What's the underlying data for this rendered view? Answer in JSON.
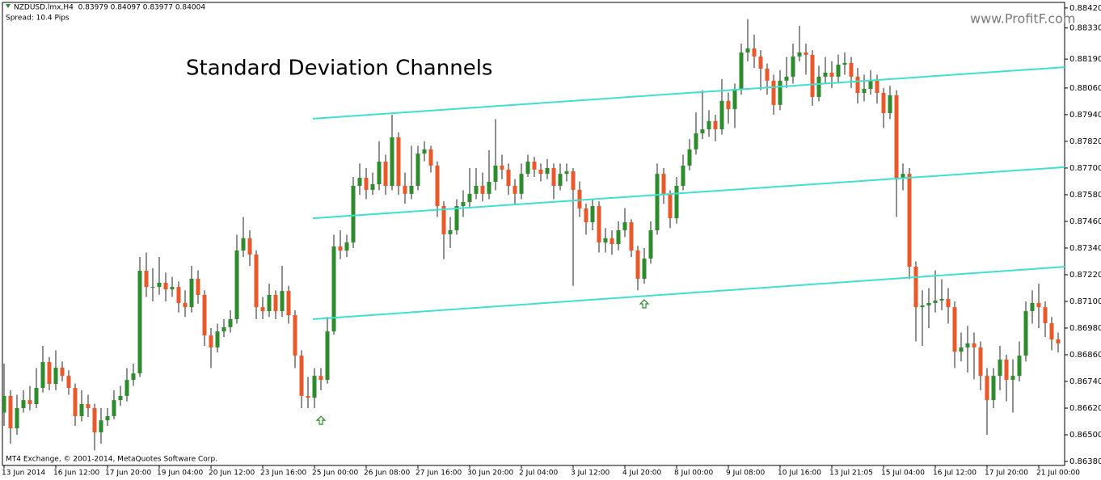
{
  "chart_data": {
    "type": "candlestick",
    "symbol_info": "NZDUSD.lmx,H4  0.83979 0.84097 0.83977 0.84004",
    "spread": "Spread: 10.4 Pips",
    "title": "Standard Deviation Channels",
    "watermark": "www.ProfitF.com",
    "credit": "MT4 Exchange, © 2001-2014, MetaQuotes Software Corp.",
    "up_color": "#2e8b2e",
    "down_color": "#e8582a",
    "wick_color": "#222222",
    "categories": [
      "13 Jun 2014",
      null,
      null,
      null,
      null,
      null,
      null,
      null,
      "16 Jun 12:00",
      null,
      null,
      null,
      null,
      null,
      null,
      null,
      "17 Jun 20:00",
      null,
      null,
      null,
      null,
      null,
      null,
      null,
      "19 Jun 04:00",
      null,
      null,
      null,
      null,
      null,
      null,
      null,
      "20 Jun 12:00",
      null,
      null,
      null,
      null,
      null,
      null,
      null,
      "23 Jun 16:00",
      null,
      null,
      null,
      null,
      null,
      null,
      null,
      "25 Jun 00:00",
      null,
      null,
      null,
      null,
      null,
      null,
      null,
      "26 Jun 08:00",
      null,
      null,
      null,
      null,
      null,
      null,
      null,
      "27 Jun 16:00",
      null,
      null,
      null,
      null,
      null,
      null,
      null,
      "30 Jun 20:00",
      null,
      null,
      null,
      null,
      null,
      null,
      null,
      "2 Jul 04:00",
      null,
      null,
      null,
      null,
      null,
      null,
      null,
      "3 Jul 12:00",
      null,
      null,
      null,
      null,
      null,
      null,
      null,
      "4 Jul 20:00",
      null,
      null,
      null,
      null,
      null,
      null,
      null,
      "8 Jul 00:00",
      null,
      null,
      null,
      null,
      null,
      null,
      null,
      "9 Jul 08:00",
      null,
      null,
      null,
      null,
      null,
      null,
      null,
      "10 Jul 16:00",
      null,
      null,
      null,
      null,
      null,
      null,
      null,
      "13 Jul 21:05",
      null,
      null,
      null,
      null,
      null,
      null,
      null,
      "15 Jul 04:00",
      null,
      null,
      null,
      null,
      null,
      null,
      null,
      "16 Jul 12:00",
      null,
      null,
      null,
      null,
      null,
      null,
      null,
      "17 Jul 20:00",
      null,
      null,
      null,
      null,
      null,
      null,
      null,
      "21 Jul 00:00",
      null,
      null,
      null
    ],
    "open": [
      0.866,
      0.86675,
      0.86529,
      0.8662,
      0.86656,
      0.86638,
      0.86711,
      0.86827,
      0.86729,
      0.86802,
      0.86765,
      0.86711,
      0.86584,
      0.86638,
      0.8662,
      0.86511,
      0.86565,
      0.86584,
      0.86656,
      0.86675,
      0.86747,
      0.86776,
      0.87238,
      0.87165,
      0.87165,
      0.87184,
      0.87154,
      0.87165,
      0.87093,
      0.87074,
      0.87202,
      0.87129,
      0.86947,
      0.86893,
      0.86965,
      0.86984,
      0.8702,
      0.87329,
      0.87384,
      0.87311,
      0.87074,
      0.87056,
      0.87129,
      0.87056,
      0.87147,
      0.87038,
      0.86856,
      0.86675,
      0.86667,
      0.86765,
      0.86747,
      0.86965,
      0.87347,
      0.87329,
      0.87365,
      0.8762,
      0.87656,
      0.87602,
      0.87627,
      0.87729,
      0.8762,
      0.87838,
      0.8762,
      0.87584,
      0.8762,
      0.87765,
      0.87784,
      0.87711,
      0.87529,
      0.87402,
      0.8742,
      0.87529,
      0.87547,
      0.87584,
      0.8762,
      0.87584,
      0.87638,
      0.87711,
      0.87693,
      0.8762,
      0.87584,
      0.87674,
      0.87729,
      0.87693,
      0.87674,
      0.877,
      0.8762,
      0.87674,
      0.87685,
      0.87602,
      0.87518,
      0.87456,
      0.87529,
      0.87365,
      0.87384,
      0.87358,
      0.8742,
      0.87456,
      0.87329,
      0.87202,
      0.87293,
      0.8742,
      0.87674,
      0.87584,
      0.87474,
      0.8762,
      0.87711,
      0.87784,
      0.87856,
      0.87874,
      0.87911,
      0.87874,
      0.88002,
      0.87965,
      0.88056,
      0.8822,
      0.88238,
      0.88202,
      0.88147,
      0.88093,
      0.87984,
      0.88093,
      0.88111,
      0.88202,
      0.8822,
      0.88209,
      0.8802,
      0.88111,
      0.88129,
      0.88111,
      0.88165,
      0.88173,
      0.88111,
      0.88038,
      0.88056,
      0.88093,
      0.88038,
      0.87947,
      0.88027,
      0.87656,
      0.87674,
      0.87256,
      0.87074,
      0.87082,
      0.87093,
      0.87104,
      0.87111,
      0.87074,
      0.86874,
      0.86893,
      0.86911,
      0.86893,
      0.86765,
      0.86656,
      0.86765,
      0.86838,
      0.86747,
      0.86765,
      0.86856,
      0.87056,
      0.87093,
      0.87074,
      0.87002,
      0.86929
    ],
    "high": [
      0.8682,
      0.867,
      0.8668,
      0.867,
      0.8672,
      0.868,
      0.869,
      0.8685,
      0.8688,
      0.8683,
      0.8679,
      0.8673,
      0.867,
      0.8668,
      0.8664,
      0.8662,
      0.8662,
      0.867,
      0.8672,
      0.868,
      0.8682,
      0.873,
      0.8732,
      0.8725,
      0.873,
      0.8723,
      0.8721,
      0.8719,
      0.8715,
      0.8726,
      0.8724,
      0.8715,
      0.8698,
      0.87,
      0.8702,
      0.8706,
      0.874,
      0.8748,
      0.8742,
      0.8733,
      0.8712,
      0.8718,
      0.8715,
      0.8726,
      0.8717,
      0.8706,
      0.8688,
      0.8676,
      0.868,
      0.868,
      0.8703,
      0.874,
      0.8742,
      0.874,
      0.8766,
      0.8772,
      0.877,
      0.8768,
      0.8782,
      0.8776,
      0.8794,
      0.8786,
      0.8768,
      0.878,
      0.878,
      0.8782,
      0.878,
      0.8773,
      0.8755,
      0.8748,
      0.8756,
      0.876,
      0.877,
      0.877,
      0.8768,
      0.8778,
      0.8792,
      0.8776,
      0.8772,
      0.8765,
      0.8772,
      0.8776,
      0.8775,
      0.8772,
      0.8774,
      0.8772,
      0.8772,
      0.8772,
      0.877,
      0.8764,
      0.8754,
      0.8756,
      0.8755,
      0.8743,
      0.8742,
      0.8746,
      0.8752,
      0.8747,
      0.8735,
      0.8734,
      0.8746,
      0.8772,
      0.877,
      0.876,
      0.8766,
      0.8776,
      0.8783,
      0.8795,
      0.8805,
      0.8796,
      0.8794,
      0.881,
      0.8804,
      0.8808,
      0.8826,
      0.8837,
      0.883,
      0.8823,
      0.8817,
      0.8812,
      0.8814,
      0.882,
      0.8826,
      0.8834,
      0.8826,
      0.8823,
      0.8816,
      0.882,
      0.8818,
      0.8821,
      0.8822,
      0.882,
      0.8815,
      0.8812,
      0.8814,
      0.8812,
      0.8806,
      0.8807,
      0.8805,
      0.8772,
      0.877,
      0.8728,
      0.8715,
      0.8716,
      0.8724,
      0.872,
      0.8716,
      0.871,
      0.8696,
      0.8699,
      0.8696,
      0.8692,
      0.868,
      0.868,
      0.869,
      0.8686,
      0.8684,
      0.8692,
      0.871,
      0.8715,
      0.8718,
      0.871,
      0.8703,
      0.8696
    ],
    "low": [
      0.8654,
      0.8646,
      0.865,
      0.866,
      0.8661,
      0.8662,
      0.8669,
      0.867,
      0.867,
      0.8674,
      0.8668,
      0.8654,
      0.8656,
      0.8658,
      0.8643,
      0.8646,
      0.8654,
      0.8657,
      0.8663,
      0.8665,
      0.8672,
      0.8676,
      0.8712,
      0.871,
      0.8713,
      0.871,
      0.8712,
      0.8705,
      0.8703,
      0.8705,
      0.8709,
      0.869,
      0.868,
      0.8687,
      0.8694,
      0.8696,
      0.87,
      0.873,
      0.8726,
      0.8702,
      0.8702,
      0.8703,
      0.8702,
      0.8703,
      0.87,
      0.868,
      0.8662,
      0.8662,
      0.8662,
      0.867,
      0.8673,
      0.8695,
      0.8729,
      0.873,
      0.8734,
      0.8758,
      0.8756,
      0.8758,
      0.876,
      0.8758,
      0.876,
      0.8758,
      0.8754,
      0.8756,
      0.876,
      0.8773,
      0.8768,
      0.8748,
      0.8729,
      0.8734,
      0.874,
      0.8748,
      0.8752,
      0.8756,
      0.8755,
      0.8756,
      0.876,
      0.8765,
      0.8758,
      0.8754,
      0.8756,
      0.8766,
      0.8766,
      0.8764,
      0.8765,
      0.8756,
      0.876,
      0.8764,
      0.8717,
      0.8748,
      0.874,
      0.8742,
      0.8732,
      0.8732,
      0.8731,
      0.8733,
      0.8739,
      0.873,
      0.8715,
      0.8718,
      0.8727,
      0.874,
      0.8754,
      0.8743,
      0.8745,
      0.876,
      0.8769,
      0.8776,
      0.8783,
      0.8784,
      0.8782,
      0.8785,
      0.879,
      0.8788,
      0.8803,
      0.8818,
      0.8815,
      0.8805,
      0.8803,
      0.8794,
      0.8796,
      0.8806,
      0.8808,
      0.8818,
      0.8812,
      0.8798,
      0.88,
      0.8808,
      0.8806,
      0.8808,
      0.8812,
      0.8806,
      0.8799,
      0.88,
      0.8803,
      0.8799,
      0.8788,
      0.8792,
      0.8748,
      0.876,
      0.872,
      0.8692,
      0.869,
      0.8698,
      0.8705,
      0.8706,
      0.87,
      0.868,
      0.8683,
      0.8678,
      0.8675,
      0.867,
      0.865,
      0.8662,
      0.867,
      0.8665,
      0.866,
      0.8674,
      0.8683,
      0.87,
      0.8698,
      0.8694,
      0.8688,
      0.8687
    ],
    "close": [
      0.86675,
      0.86529,
      0.8662,
      0.86656,
      0.86638,
      0.86711,
      0.86827,
      0.86729,
      0.86802,
      0.86765,
      0.86711,
      0.86584,
      0.86638,
      0.8662,
      0.86511,
      0.86565,
      0.86584,
      0.86656,
      0.86675,
      0.86747,
      0.86776,
      0.87238,
      0.87165,
      0.87165,
      0.87184,
      0.87154,
      0.87165,
      0.87093,
      0.87074,
      0.87202,
      0.87129,
      0.86947,
      0.86893,
      0.86965,
      0.86984,
      0.8702,
      0.87329,
      0.87384,
      0.87311,
      0.87074,
      0.87056,
      0.87129,
      0.87056,
      0.87147,
      0.87038,
      0.86856,
      0.86675,
      0.86667,
      0.86765,
      0.86747,
      0.86965,
      0.87347,
      0.87329,
      0.87365,
      0.8762,
      0.87656,
      0.87602,
      0.87627,
      0.87729,
      0.8762,
      0.87838,
      0.8762,
      0.87584,
      0.8762,
      0.87765,
      0.87784,
      0.87711,
      0.87529,
      0.87402,
      0.8742,
      0.87529,
      0.87547,
      0.87584,
      0.8762,
      0.87584,
      0.87638,
      0.87711,
      0.87693,
      0.8762,
      0.87584,
      0.87674,
      0.87729,
      0.87693,
      0.87674,
      0.877,
      0.8762,
      0.87674,
      0.87685,
      0.87602,
      0.87518,
      0.87456,
      0.87529,
      0.87365,
      0.87384,
      0.87358,
      0.8742,
      0.87456,
      0.87329,
      0.87202,
      0.87293,
      0.8742,
      0.87674,
      0.87584,
      0.87474,
      0.8762,
      0.87711,
      0.87784,
      0.87856,
      0.87874,
      0.87911,
      0.87874,
      0.88002,
      0.87965,
      0.88056,
      0.8822,
      0.88238,
      0.88202,
      0.88147,
      0.88093,
      0.87984,
      0.88093,
      0.88111,
      0.88202,
      0.8822,
      0.88209,
      0.8802,
      0.88111,
      0.88129,
      0.88111,
      0.88165,
      0.88173,
      0.88111,
      0.88038,
      0.88056,
      0.88093,
      0.88038,
      0.87947,
      0.88027,
      0.87656,
      0.87674,
      0.87256,
      0.87074,
      0.87082,
      0.87093,
      0.87104,
      0.87111,
      0.87074,
      0.86874,
      0.86893,
      0.86911,
      0.86893,
      0.86765,
      0.86656,
      0.86765,
      0.86838,
      0.86747,
      0.86765,
      0.86856,
      0.87056,
      0.87093,
      0.87074,
      0.87002,
      0.86929,
      0.86911
    ],
    "channel": {
      "color": "#40e0d0",
      "x": [
        47.75,
        164.1
      ],
      "upper": [
        0.87922,
        0.88154
      ],
      "middle": [
        0.87474,
        0.87704
      ],
      "lower": [
        0.8702,
        0.87256
      ]
    },
    "arrows": {
      "color": "#2e8b2e",
      "x": [
        49,
        99
      ],
      "values": [
        0.86565,
        0.87089
      ]
    },
    "ylim": [
      0.86362,
      0.88445
    ],
    "yticks": [
      {
        "value": 0.8638,
        "label": "0.86380"
      },
      {
        "value": 0.865,
        "label": "0.86500"
      },
      {
        "value": 0.8662,
        "label": "0.86620"
      },
      {
        "value": 0.8674,
        "label": "0.86740"
      },
      {
        "value": 0.8686,
        "label": "0.86860"
      },
      {
        "value": 0.8698,
        "label": "0.86980"
      },
      {
        "value": 0.871,
        "label": "0.87100"
      },
      {
        "value": 0.8722,
        "label": "0.87220"
      },
      {
        "value": 0.8734,
        "label": "0.87340"
      },
      {
        "value": 0.8746,
        "label": "0.87460"
      },
      {
        "value": 0.8758,
        "label": "0.87580"
      },
      {
        "value": 0.877,
        "label": "0.87700"
      },
      {
        "value": 0.8782,
        "label": "0.87820"
      },
      {
        "value": 0.8794,
        "label": "0.87940"
      },
      {
        "value": 0.8806,
        "label": "0.88060"
      },
      {
        "value": 0.8819,
        "label": "0.88190"
      },
      {
        "value": 0.8833,
        "label": "0.88330"
      },
      {
        "value": 0.8842,
        "label": "0.88420"
      }
    ]
  }
}
